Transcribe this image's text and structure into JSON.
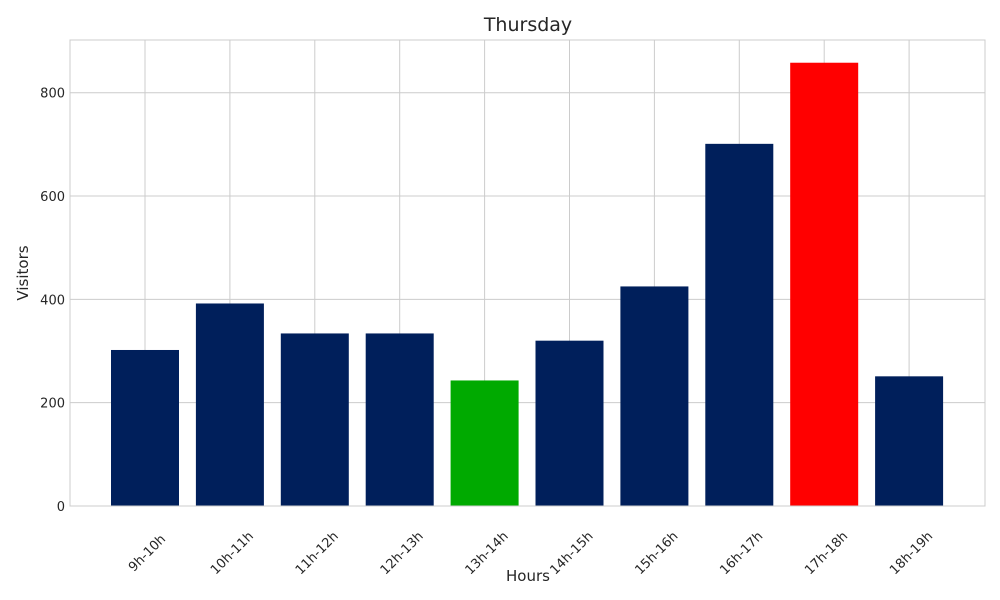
{
  "chart_data": {
    "type": "bar",
    "title": "Thursday",
    "xlabel": "Hours",
    "ylabel": "Visitors",
    "categories": [
      "9h-10h",
      "10h-11h",
      "11h-12h",
      "12h-13h",
      "13h-14h",
      "14h-15h",
      "15h-16h",
      "16h-17h",
      "17h-18h",
      "18h-19h"
    ],
    "values": [
      302,
      392,
      334,
      334,
      243,
      320,
      425,
      701,
      858,
      251
    ],
    "bar_colors": [
      "#001f5b",
      "#001f5b",
      "#001f5b",
      "#001f5b",
      "#00aa00",
      "#001f5b",
      "#001f5b",
      "#001f5b",
      "#ff0000",
      "#001f5b"
    ],
    "ylim": [
      0,
      902
    ],
    "yticks": [
      0,
      200,
      400,
      600,
      800
    ],
    "grid": true,
    "legend": false
  }
}
